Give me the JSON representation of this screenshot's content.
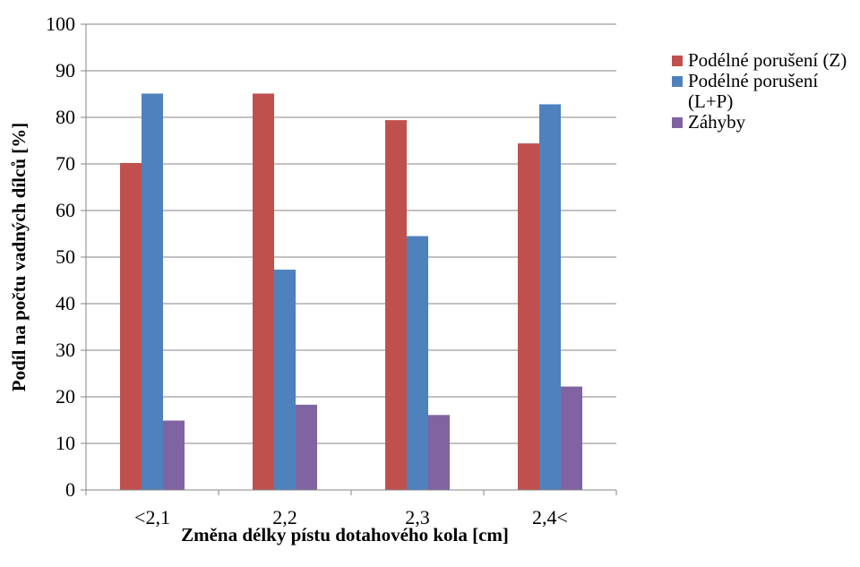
{
  "chart_data": {
    "type": "bar",
    "categories": [
      "<2,1",
      "2,2",
      "2,3",
      "2,4<"
    ],
    "series": [
      {
        "name": "Podélné porušení (Z)",
        "color": "#c0504d",
        "values": [
          70.2,
          85.1,
          79.4,
          74.4
        ]
      },
      {
        "name": "Podélné porušení (L+P)",
        "color": "#4f81bd",
        "values": [
          85.1,
          47.3,
          54.5,
          82.8
        ]
      },
      {
        "name": "Záhyby",
        "color": "#8064a2",
        "values": [
          14.9,
          18.3,
          16.1,
          22.2
        ]
      }
    ],
    "title": "",
    "xlabel": "Změna délky pístu dotahového  kola [cm]",
    "ylabel": "Podíl  na počtu  vadných  dílců  [%]",
    "ylim": [
      0,
      100
    ],
    "yticks": [
      "0",
      "10",
      "20",
      "30",
      "40",
      "50",
      "60",
      "70",
      "80",
      "90",
      "100"
    ],
    "grid": true,
    "legend_position": "right"
  }
}
